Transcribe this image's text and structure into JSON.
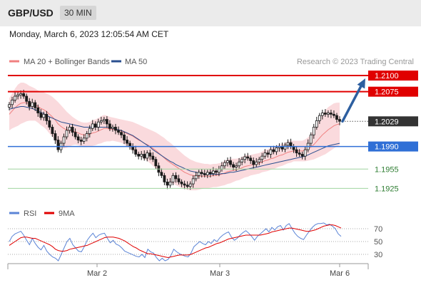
{
  "header": {
    "symbol": "GBP/USD",
    "timeframe": "30 MIN"
  },
  "timestamp": "Monday, March 6, 2023 12:05:54 AM CET",
  "legend": {
    "items": [
      {
        "label": "MA 20 + Bollinger Bands",
        "color": "#f08080"
      },
      {
        "label": "MA 50",
        "color": "#2a4f8f"
      }
    ],
    "credit": "Research © 2023 Trading Central"
  },
  "colors": {
    "resistance": "#e00000",
    "current": "#333333",
    "support_blue": "#2f6fd6",
    "support_green": "#2e7d32",
    "arrow": "#2d5fa0",
    "candle_up": "#ffffff",
    "candle_down": "#1a1a1a",
    "band_fill": "#fadadd",
    "ma20": "#f08080",
    "ma50": "#2a4f8f",
    "rsi": "#5b84d6",
    "ma9": "#e00000"
  },
  "chart_data": [
    {
      "type": "candlestick",
      "title": "GBP/USD 30 MIN",
      "x_ticks": [
        "Mar 2",
        "Mar 3",
        "Mar 6"
      ],
      "ylim": [
        1.191,
        1.211
      ],
      "levels": [
        {
          "value": 1.21,
          "label": "1.2100",
          "kind": "resistance"
        },
        {
          "value": 1.2075,
          "label": "1.2075",
          "kind": "resistance"
        },
        {
          "value": 1.2029,
          "label": "1.2029",
          "kind": "current"
        },
        {
          "value": 1.199,
          "label": "1.1990",
          "kind": "support"
        },
        {
          "value": 1.1955,
          "label": "1.1955",
          "kind": "target"
        },
        {
          "value": 1.1925,
          "label": "1.1925",
          "kind": "target"
        }
      ],
      "forecast_arrow": {
        "from": 1.2029,
        "to": 1.21,
        "direction": "up"
      },
      "close": [
        1.2055,
        1.2062,
        1.2068,
        1.207,
        1.2072,
        1.2068,
        1.206,
        1.2052,
        1.2058,
        1.205,
        1.2042,
        1.2035,
        1.204,
        1.203,
        1.202,
        1.201,
        1.2,
        1.1985,
        1.1995,
        1.2005,
        1.2015,
        1.202,
        1.2012,
        1.2005,
        1.2,
        1.1998,
        1.2003,
        1.201,
        1.2018,
        1.2025,
        1.202,
        1.2028,
        1.203,
        1.2032,
        1.2025,
        1.2018,
        1.202,
        1.2015,
        1.2012,
        1.2008,
        1.2,
        1.1995,
        1.199,
        1.1985,
        1.1978,
        1.1975,
        1.1978,
        1.1972,
        1.198,
        1.1975,
        1.197,
        1.196,
        1.195,
        1.1945,
        1.1935,
        1.193,
        1.1935,
        1.1945,
        1.194,
        1.1935,
        1.1932,
        1.193,
        1.1928,
        1.1932,
        1.194,
        1.1945,
        1.195,
        1.1948,
        1.1946,
        1.195,
        1.1948,
        1.1952,
        1.195,
        1.1955,
        1.196,
        1.1965,
        1.1968,
        1.1962,
        1.1958,
        1.196,
        1.1966,
        1.197,
        1.1974,
        1.1972,
        1.1968,
        1.1962,
        1.1966,
        1.197,
        1.1975,
        1.198,
        1.1978,
        1.1985,
        1.1982,
        1.1988,
        1.199,
        1.1986,
        1.1992,
        1.1996,
        1.199,
        1.1985,
        1.198,
        1.1978,
        1.1975,
        1.1985,
        1.1995,
        1.2008,
        1.202,
        1.203,
        1.2038,
        1.2042,
        1.204,
        1.2042,
        1.204,
        1.2038,
        1.2032,
        1.2029
      ],
      "ma20": [
        1.204,
        1.2045,
        1.205,
        1.2054,
        1.2057,
        1.2058,
        1.2058,
        1.2057,
        1.2056,
        1.2055,
        1.2052,
        1.2049,
        1.2047,
        1.2044,
        1.204,
        1.2036,
        1.2031,
        1.2025,
        1.2021,
        1.2018,
        1.2016,
        1.2015,
        1.2014,
        1.2013,
        1.2011,
        1.2009,
        1.2008,
        1.2008,
        1.2009,
        1.2011,
        1.2012,
        1.2014,
        1.2016,
        1.2018,
        1.2018,
        1.2017,
        1.2017,
        1.2016,
        1.2015,
        1.2014,
        1.2012,
        1.201,
        1.2008,
        1.2006,
        1.2003,
        1.2,
        1.1998,
        1.1995,
        1.1993,
        1.199,
        1.1987,
        1.1984,
        1.198,
        1.1976,
        1.1972,
        1.1968,
        1.1965,
        1.1962,
        1.1959,
        1.1956,
        1.1953,
        1.195,
        1.1948,
        1.1946,
        1.1945,
        1.1944,
        1.1944,
        1.1944,
        1.1944,
        1.1944,
        1.1944,
        1.1945,
        1.1945,
        1.1946,
        1.1947,
        1.1949,
        1.1951,
        1.1952,
        1.1953,
        1.1954,
        1.1955,
        1.1957,
        1.1959,
        1.196,
        1.1961,
        1.1962,
        1.1963,
        1.1964,
        1.1966,
        1.1968,
        1.1969,
        1.1971,
        1.1972,
        1.1974,
        1.1976,
        1.1977,
        1.1979,
        1.1981,
        1.1982,
        1.1983,
        1.1983,
        1.1983,
        1.1983,
        1.1984,
        1.1986,
        1.1989,
        1.1993,
        1.1998,
        1.2003,
        1.2008,
        1.2012,
        1.2016,
        1.2019,
        1.2022,
        1.2024,
        1.2025
      ],
      "band_width": [
        0.0025,
        0.0027,
        0.003,
        0.0032,
        0.0032,
        0.0031,
        0.0029,
        0.0027,
        0.0026,
        0.0025,
        0.0025,
        0.0026,
        0.0027,
        0.0028,
        0.003,
        0.0031,
        0.0032,
        0.0034,
        0.0033,
        0.0031,
        0.0028,
        0.0025,
        0.0022,
        0.002,
        0.0019,
        0.0019,
        0.0019,
        0.0019,
        0.0019,
        0.002,
        0.002,
        0.002,
        0.0021,
        0.0021,
        0.002,
        0.0019,
        0.0018,
        0.0018,
        0.0018,
        0.0018,
        0.0019,
        0.002,
        0.0021,
        0.0022,
        0.0023,
        0.0024,
        0.0024,
        0.0025,
        0.0025,
        0.0026,
        0.0027,
        0.0028,
        0.0029,
        0.003,
        0.0031,
        0.0031,
        0.0031,
        0.003,
        0.0029,
        0.0028,
        0.0027,
        0.0026,
        0.0025,
        0.0024,
        0.0023,
        0.0022,
        0.0021,
        0.002,
        0.0019,
        0.0019,
        0.0018,
        0.0018,
        0.0018,
        0.0018,
        0.0018,
        0.0019,
        0.0019,
        0.0019,
        0.0018,
        0.0017,
        0.0017,
        0.0017,
        0.0017,
        0.0017,
        0.0016,
        0.0016,
        0.0016,
        0.0016,
        0.0016,
        0.0017,
        0.0017,
        0.0017,
        0.0017,
        0.0017,
        0.0017,
        0.0017,
        0.0017,
        0.0017,
        0.0017,
        0.0016,
        0.0016,
        0.0016,
        0.0016,
        0.0017,
        0.0018,
        0.002,
        0.0023,
        0.0026,
        0.0029,
        0.0032,
        0.0034,
        0.0035,
        0.0035,
        0.0035,
        0.0034,
        0.0033
      ],
      "ma50": [
        1.2048,
        1.2049,
        1.205,
        1.2051,
        1.2052,
        1.2052,
        1.2051,
        1.205,
        1.2049,
        1.2047,
        1.2045,
        1.2043,
        1.2041,
        1.2038,
        1.2036,
        1.2034,
        1.2032,
        1.203,
        1.2028,
        1.2027,
        1.2026,
        1.2025,
        1.2024,
        1.2023,
        1.2022,
        1.2021,
        1.202,
        1.202,
        1.202,
        1.202,
        1.202,
        1.202,
        1.202,
        1.202,
        1.202,
        1.2019,
        1.2018,
        1.2017,
        1.2016,
        1.2015,
        1.2013,
        1.2011,
        1.2009,
        1.2007,
        1.2004,
        1.2001,
        1.1998,
        1.1995,
        1.1992,
        1.1989,
        1.1985,
        1.1982,
        1.1979,
        1.1976,
        1.1973,
        1.197,
        1.1967,
        1.1965,
        1.1962,
        1.196,
        1.1958,
        1.1956,
        1.1954,
        1.1952,
        1.1951,
        1.195,
        1.1949,
        1.1948,
        1.1948,
        1.1947,
        1.1947,
        1.1947,
        1.1947,
        1.1947,
        1.1948,
        1.1948,
        1.1949,
        1.195,
        1.195,
        1.1951,
        1.1952,
        1.1953,
        1.1954,
        1.1955,
        1.1956,
        1.1957,
        1.1958,
        1.1959,
        1.196,
        1.1961,
        1.1962,
        1.1963,
        1.1964,
        1.1965,
        1.1966,
        1.1967,
        1.1968,
        1.1969,
        1.197,
        1.1971,
        1.1972,
        1.1973,
        1.1974,
        1.1975,
        1.1977,
        1.1979,
        1.1981,
        1.1983,
        1.1985,
        1.1987,
        1.1989,
        1.1991,
        1.1992,
        1.1993,
        1.1994,
        1.1995
      ]
    },
    {
      "type": "line",
      "title": "RSI",
      "legend": [
        "RSI",
        "9MA"
      ],
      "yticks": [
        70,
        50,
        30
      ],
      "ylim": [
        20,
        80
      ],
      "series": [
        {
          "name": "RSI",
          "values": [
            50,
            58,
            62,
            64,
            66,
            60,
            52,
            45,
            55,
            47,
            41,
            37,
            44,
            35,
            30,
            26,
            24,
            20,
            30,
            40,
            50,
            55,
            45,
            40,
            35,
            34,
            42,
            52,
            58,
            63,
            56,
            60,
            62,
            63,
            55,
            48,
            52,
            46,
            44,
            40,
            35,
            33,
            31,
            29,
            27,
            26,
            30,
            25,
            38,
            34,
            32,
            25,
            20,
            24,
            20,
            22,
            28,
            38,
            34,
            31,
            29,
            27,
            26,
            32,
            42,
            46,
            50,
            47,
            45,
            50,
            47,
            53,
            50,
            56,
            60,
            63,
            65,
            57,
            52,
            55,
            60,
            64,
            67,
            63,
            58,
            52,
            58,
            62,
            66,
            70,
            65,
            72,
            68,
            73,
            75,
            68,
            75,
            78,
            70,
            63,
            58,
            55,
            53,
            60,
            66,
            72,
            76,
            78,
            78,
            79,
            76,
            77,
            74,
            70,
            62,
            58
          ]
        },
        {
          "name": "9MA",
          "values": [
            44,
            47,
            50,
            53,
            56,
            57,
            57,
            56,
            55,
            55,
            53,
            51,
            49,
            47,
            45,
            42,
            38,
            36,
            35,
            35,
            36,
            38,
            39,
            40,
            41,
            42,
            43,
            44,
            46,
            48,
            50,
            52,
            54,
            56,
            57,
            57,
            57,
            56,
            55,
            53,
            51,
            48,
            45,
            42,
            40,
            37,
            35,
            33,
            31,
            31,
            30,
            29,
            28,
            27,
            26,
            25,
            26,
            27,
            28,
            29,
            29,
            29,
            29,
            30,
            32,
            34,
            36,
            38,
            40,
            41,
            43,
            45,
            47,
            48,
            50,
            52,
            54,
            55,
            56,
            57,
            58,
            59,
            60,
            60,
            60,
            60,
            60,
            60,
            61,
            62,
            63,
            65,
            66,
            67,
            68,
            69,
            70,
            71,
            71,
            70,
            69,
            68,
            67,
            66,
            66,
            67,
            68,
            70,
            72,
            74,
            75,
            76,
            76,
            75,
            73,
            71
          ]
        }
      ]
    }
  ]
}
